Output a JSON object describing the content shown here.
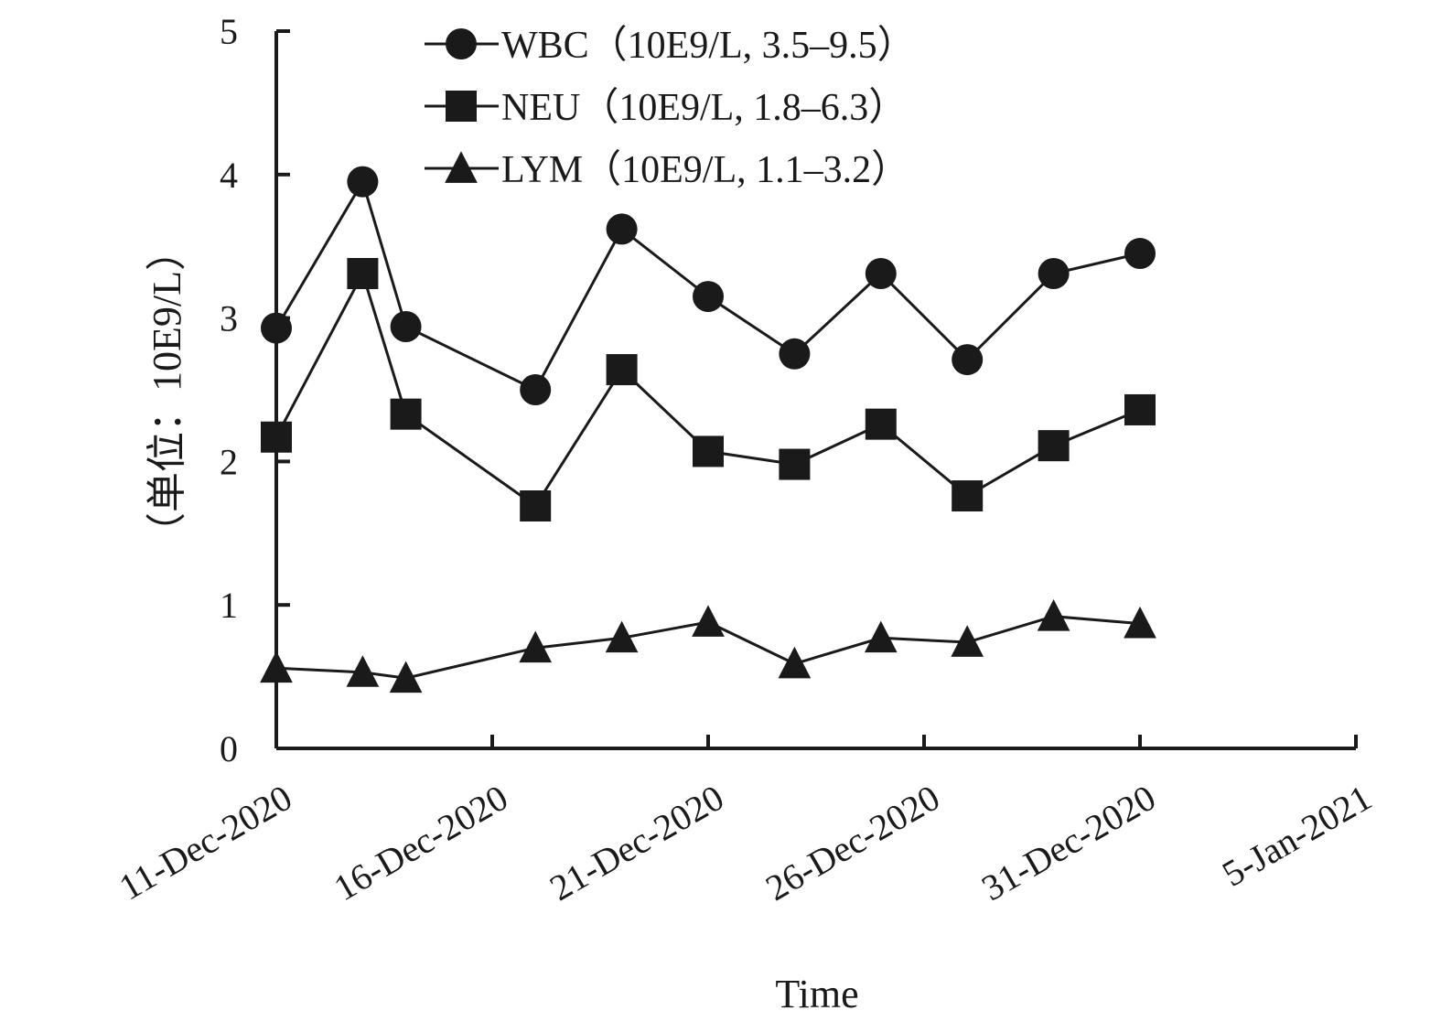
{
  "chart_data": {
    "type": "line",
    "xlabel": "Time",
    "ylabel": "（单位：10E9/L）",
    "ylim": [
      0,
      5
    ],
    "yticks": [
      0,
      1,
      2,
      3,
      4,
      5
    ],
    "xlim": [
      "11-Dec-2020",
      "5-Jan-2021"
    ],
    "xticks": [
      "11-Dec-2020",
      "16-Dec-2020",
      "21-Dec-2020",
      "26-Dec-2020",
      "31-Dec-2020",
      "5-Jan-2021"
    ],
    "legend_position": "top",
    "grid": false,
    "series": [
      {
        "name": "WBC（10E9/L, 3.5–9.5）",
        "marker": "circle",
        "color": "#1a1a1a",
        "points": [
          {
            "x": "11-Dec-2020",
            "y": 2.93
          },
          {
            "x": "13-Dec-2020",
            "y": 3.95
          },
          {
            "x": "14-Dec-2020",
            "y": 2.94
          },
          {
            "x": "17-Dec-2020",
            "y": 2.5
          },
          {
            "x": "19-Dec-2020",
            "y": 3.62
          },
          {
            "x": "21-Dec-2020",
            "y": 3.15
          },
          {
            "x": "23-Dec-2020",
            "y": 2.75
          },
          {
            "x": "25-Dec-2020",
            "y": 3.31
          },
          {
            "x": "27-Dec-2020",
            "y": 2.71
          },
          {
            "x": "29-Dec-2020",
            "y": 3.31
          },
          {
            "x": "31-Dec-2020",
            "y": 3.45
          }
        ]
      },
      {
        "name": "NEU（10E9/L, 1.8–6.3）",
        "marker": "square",
        "color": "#1a1a1a",
        "points": [
          {
            "x": "11-Dec-2020",
            "y": 2.17
          },
          {
            "x": "13-Dec-2020",
            "y": 3.31
          },
          {
            "x": "14-Dec-2020",
            "y": 2.33
          },
          {
            "x": "17-Dec-2020",
            "y": 1.69
          },
          {
            "x": "19-Dec-2020",
            "y": 2.64
          },
          {
            "x": "21-Dec-2020",
            "y": 2.07
          },
          {
            "x": "23-Dec-2020",
            "y": 1.98
          },
          {
            "x": "25-Dec-2020",
            "y": 2.26
          },
          {
            "x": "27-Dec-2020",
            "y": 1.76
          },
          {
            "x": "29-Dec-2020",
            "y": 2.11
          },
          {
            "x": "31-Dec-2020",
            "y": 2.36
          }
        ]
      },
      {
        "name": "LYM（10E9/L, 1.1–3.2）",
        "marker": "triangle",
        "color": "#1a1a1a",
        "points": [
          {
            "x": "11-Dec-2020",
            "y": 0.56
          },
          {
            "x": "13-Dec-2020",
            "y": 0.53
          },
          {
            "x": "14-Dec-2020",
            "y": 0.49
          },
          {
            "x": "17-Dec-2020",
            "y": 0.7
          },
          {
            "x": "19-Dec-2020",
            "y": 0.77
          },
          {
            "x": "21-Dec-2020",
            "y": 0.88
          },
          {
            "x": "23-Dec-2020",
            "y": 0.59
          },
          {
            "x": "25-Dec-2020",
            "y": 0.77
          },
          {
            "x": "27-Dec-2020",
            "y": 0.74
          },
          {
            "x": "29-Dec-2020",
            "y": 0.92
          },
          {
            "x": "31-Dec-2020",
            "y": 0.87
          }
        ]
      }
    ]
  }
}
